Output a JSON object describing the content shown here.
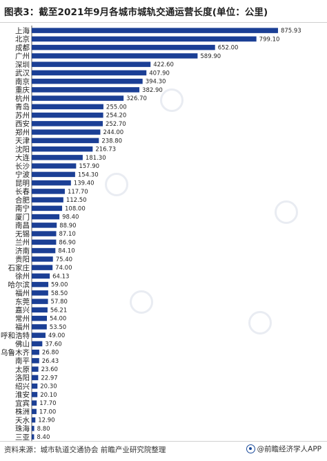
{
  "title": "图表3：截至2021年9月各城市城轨交通运营长度(单位：公里)",
  "source": "资料来源：城市轨道交通协会 前瞻产业研究院整理",
  "brand": "@前瞻经济学人APP",
  "colors": {
    "bar": "#1b3f95",
    "text": "#222222",
    "axis": "#555555"
  },
  "chart_data": {
    "type": "bar",
    "orientation": "horizontal",
    "categories": [
      "上海",
      "北京",
      "成都",
      "广州",
      "深圳",
      "武汉",
      "南京",
      "重庆",
      "杭州",
      "青岛",
      "苏州",
      "西安",
      "郑州",
      "天津",
      "沈阳",
      "大连",
      "长沙",
      "宁波",
      "昆明",
      "长春",
      "合肥",
      "南宁",
      "厦门",
      "南昌",
      "无锡",
      "兰州",
      "济南",
      "贵阳",
      "石家庄",
      "徐州",
      "哈尔滨",
      "福州",
      "东莞",
      "嘉兴",
      "常州",
      "福州",
      "呼和浩特",
      "佛山",
      "乌鲁木齐",
      "南平",
      "太原",
      "洛阳",
      "绍兴",
      "淮安",
      "宜宾",
      "株洲",
      "天水",
      "珠海",
      "三亚"
    ],
    "values": [
      875.93,
      799.1,
      652.0,
      589.9,
      422.6,
      407.9,
      394.3,
      382.9,
      326.7,
      255.0,
      254.2,
      252.7,
      244.0,
      238.8,
      216.73,
      181.3,
      157.9,
      154.3,
      139.4,
      117.7,
      112.5,
      108.0,
      98.4,
      88.9,
      87.1,
      86.9,
      84.1,
      75.4,
      74.0,
      64.13,
      59.0,
      58.5,
      57.8,
      56.21,
      54.0,
      53.5,
      49.0,
      37.6,
      26.8,
      26.43,
      23.6,
      22.97,
      20.3,
      20.1,
      17.7,
      17.0,
      12.9,
      8.8,
      8.4
    ],
    "labels": [
      "875.93",
      "799.10",
      "652.00",
      "589.90",
      "422.60",
      "407.90",
      "394.30",
      "382.90",
      "326.70",
      "255.00",
      "254.20",
      "252.70",
      "244.00",
      "238.80",
      "216.73",
      "181.30",
      "157.90",
      "154.30",
      "139.40",
      "117.70",
      "112.50",
      "108.00",
      "98.40",
      "88.90",
      "87.10",
      "86.90",
      "84.10",
      "75.40",
      "74.00",
      "64.13",
      "59.00",
      "58.50",
      "57.80",
      "56.21",
      "54.00",
      "53.50",
      "49.00",
      "37.60",
      "26.80",
      "26.43",
      "23.60",
      "22.97",
      "20.30",
      "20.10",
      "17.70",
      "17.00",
      "12.90",
      "8.80",
      "8.40"
    ],
    "xlim": [
      0,
      876
    ],
    "grid": false,
    "legend": "none"
  }
}
